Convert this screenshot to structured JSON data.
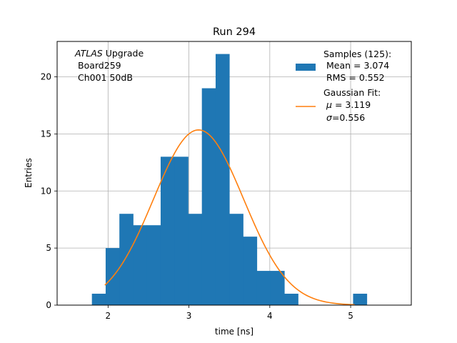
{
  "chart_data": {
    "type": "histogram",
    "title": "Run 294",
    "xlabel": "time [ns]",
    "ylabel": "Entries",
    "xlim": [
      1.37,
      5.75
    ],
    "ylim": [
      0,
      23.1
    ],
    "xticks": [
      2,
      3,
      4,
      5
    ],
    "yticks": [
      0,
      5,
      10,
      15,
      20
    ],
    "grid": true,
    "bin_width": 0.17,
    "bins": [
      {
        "left": 1.8,
        "count": 1
      },
      {
        "left": 1.97,
        "count": 5
      },
      {
        "left": 2.14,
        "count": 8
      },
      {
        "left": 2.31,
        "count": 7
      },
      {
        "left": 2.48,
        "count": 7
      },
      {
        "left": 2.65,
        "count": 13
      },
      {
        "left": 2.82,
        "count": 13
      },
      {
        "left": 2.99,
        "count": 8
      },
      {
        "left": 3.16,
        "count": 19
      },
      {
        "left": 3.33,
        "count": 22
      },
      {
        "left": 3.5,
        "count": 8
      },
      {
        "left": 3.67,
        "count": 6
      },
      {
        "left": 3.84,
        "count": 3
      },
      {
        "left": 4.01,
        "count": 3
      },
      {
        "left": 4.18,
        "count": 1
      },
      {
        "left": 4.35,
        "count": 0
      },
      {
        "left": 4.52,
        "count": 0
      },
      {
        "left": 4.69,
        "count": 0
      },
      {
        "left": 4.86,
        "count": 0
      },
      {
        "left": 5.03,
        "count": 1
      }
    ],
    "fit": {
      "name": "Gaussian Fit",
      "mu": 3.119,
      "sigma": 0.556,
      "amplitude": 15.35,
      "x_range": [
        1.96,
        5.05
      ]
    },
    "colors": {
      "bars": "#1f77b4",
      "fit": "#ff7f0e",
      "grid": "#b0b0b0"
    },
    "annotation": {
      "line1_italic": "ATLAS",
      "line1_rest": " Upgrade",
      "line2": "Board259",
      "line3": "Ch001 50dB"
    },
    "legend": {
      "placement": "top-right",
      "samples_title": "Samples (125):",
      "samples_mean": "Mean = 3.074",
      "samples_rms": "RMS = 0.552",
      "fit_title": "Gaussian Fit:",
      "fit_mu": "= 3.119",
      "fit_sigma": "=0.556"
    }
  }
}
